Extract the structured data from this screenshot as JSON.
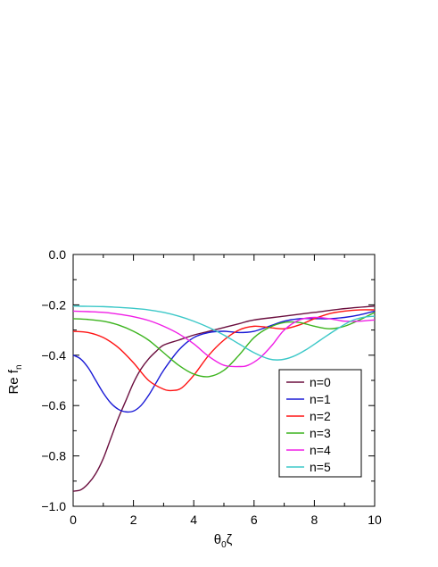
{
  "chart_data": {
    "type": "line",
    "xlabel": "θ₀ζ",
    "xlabel_main": "θ",
    "xlabel_sub": "0",
    "xlabel_tail": "ζ",
    "ylabel": "Re fₙ",
    "ylabel_main": "Re f",
    "ylabel_sub": "n",
    "xlim": [
      0,
      10
    ],
    "ylim": [
      -1.0,
      0.0
    ],
    "xticks": [
      0,
      2,
      4,
      6,
      8,
      10
    ],
    "yticks": [
      -1.0,
      -0.8,
      -0.6,
      -0.4,
      -0.2,
      0.0
    ],
    "xtick_labels": [
      "0",
      "2",
      "4",
      "6",
      "8",
      "10"
    ],
    "ytick_labels": [
      "−1.0",
      "−0.8",
      "−0.6",
      "−0.4",
      "−0.2",
      "0.0"
    ],
    "legend_position": "bottom-right",
    "series": [
      {
        "name": "n=0",
        "color": "#6b0f3f",
        "x": [
          0,
          0.25,
          0.5,
          0.75,
          1.0,
          1.25,
          1.5,
          1.75,
          2.0,
          2.25,
          2.5,
          2.75,
          3.0,
          3.5,
          4.0,
          4.5,
          5.0,
          5.5,
          6.0,
          7.0,
          8.0,
          9.0,
          10.0
        ],
        "y": [
          -0.94,
          -0.935,
          -0.91,
          -0.87,
          -0.81,
          -0.73,
          -0.65,
          -0.58,
          -0.51,
          -0.455,
          -0.415,
          -0.385,
          -0.36,
          -0.34,
          -0.32,
          -0.305,
          -0.29,
          -0.275,
          -0.26,
          -0.245,
          -0.23,
          -0.215,
          -0.205
        ]
      },
      {
        "name": "n=1",
        "color": "#1a1ad6",
        "x": [
          0,
          0.25,
          0.5,
          0.75,
          1.0,
          1.25,
          1.5,
          1.75,
          2.0,
          2.25,
          2.5,
          2.75,
          3.0,
          3.5,
          4.0,
          4.5,
          5.0,
          5.5,
          6.0,
          6.5,
          7.0,
          7.5,
          8.0,
          8.5,
          9.0,
          9.5,
          10.0
        ],
        "y": [
          -0.4,
          -0.415,
          -0.45,
          -0.5,
          -0.55,
          -0.59,
          -0.615,
          -0.625,
          -0.622,
          -0.6,
          -0.56,
          -0.51,
          -0.46,
          -0.38,
          -0.33,
          -0.31,
          -0.305,
          -0.31,
          -0.305,
          -0.285,
          -0.265,
          -0.255,
          -0.255,
          -0.255,
          -0.25,
          -0.24,
          -0.225
        ]
      },
      {
        "name": "n=2",
        "color": "#ff1414",
        "x": [
          0,
          0.5,
          1.0,
          1.5,
          2.0,
          2.5,
          3.0,
          3.3,
          3.6,
          4.0,
          4.5,
          5.0,
          5.5,
          6.0,
          6.5,
          7.0,
          7.5,
          8.0,
          8.5,
          9.0,
          9.5,
          10.0
        ],
        "y": [
          -0.305,
          -0.31,
          -0.33,
          -0.37,
          -0.43,
          -0.5,
          -0.535,
          -0.54,
          -0.53,
          -0.48,
          -0.4,
          -0.34,
          -0.3,
          -0.285,
          -0.29,
          -0.295,
          -0.28,
          -0.255,
          -0.235,
          -0.225,
          -0.22,
          -0.22
        ]
      },
      {
        "name": "n=3",
        "color": "#3cb41e",
        "x": [
          0,
          0.5,
          1.0,
          1.5,
          2.0,
          2.5,
          3.0,
          3.5,
          4.0,
          4.5,
          5.0,
          5.5,
          6.0,
          6.5,
          7.0,
          7.5,
          8.0,
          8.5,
          9.0,
          9.5,
          10.0
        ],
        "y": [
          -0.255,
          -0.258,
          -0.265,
          -0.28,
          -0.305,
          -0.34,
          -0.39,
          -0.44,
          -0.475,
          -0.485,
          -0.46,
          -0.4,
          -0.33,
          -0.29,
          -0.27,
          -0.27,
          -0.285,
          -0.295,
          -0.285,
          -0.26,
          -0.23
        ]
      },
      {
        "name": "n=4",
        "color": "#f01ee6",
        "x": [
          0,
          0.5,
          1.0,
          1.5,
          2.0,
          2.5,
          3.0,
          3.5,
          4.0,
          4.5,
          5.0,
          5.5,
          5.8,
          6.2,
          6.6,
          7.0,
          7.5,
          8.0,
          8.5,
          9.0,
          9.5,
          10.0
        ],
        "y": [
          -0.225,
          -0.227,
          -0.23,
          -0.237,
          -0.247,
          -0.262,
          -0.285,
          -0.315,
          -0.355,
          -0.405,
          -0.44,
          -0.445,
          -0.44,
          -0.41,
          -0.36,
          -0.3,
          -0.26,
          -0.25,
          -0.255,
          -0.265,
          -0.265,
          -0.26
        ]
      },
      {
        "name": "n=5",
        "color": "#3cc8c8",
        "x": [
          0,
          0.5,
          1.0,
          1.5,
          2.0,
          2.5,
          3.0,
          3.5,
          4.0,
          4.5,
          5.0,
          5.5,
          6.0,
          6.5,
          6.9,
          7.3,
          7.7,
          8.2,
          8.7,
          9.2,
          9.6,
          10.0
        ],
        "y": [
          -0.205,
          -0.206,
          -0.207,
          -0.21,
          -0.214,
          -0.22,
          -0.23,
          -0.245,
          -0.265,
          -0.29,
          -0.32,
          -0.355,
          -0.39,
          -0.415,
          -0.418,
          -0.405,
          -0.38,
          -0.34,
          -0.3,
          -0.265,
          -0.25,
          -0.245
        ]
      }
    ]
  }
}
